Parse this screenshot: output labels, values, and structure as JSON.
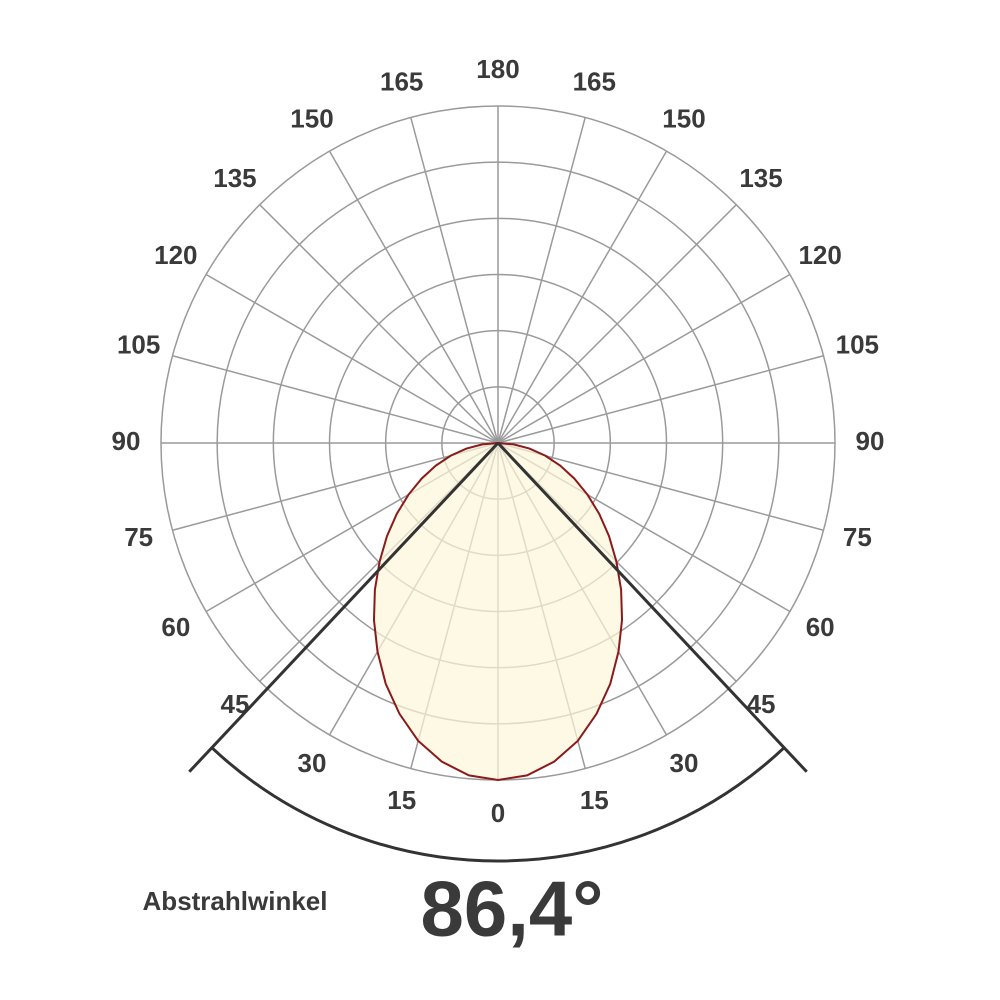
{
  "chart_data": {
    "type": "polar",
    "x": [
      -90,
      -85,
      -80,
      -75,
      -70,
      -65,
      -60,
      -55,
      -50,
      -45,
      -40,
      -35,
      -30,
      -25,
      -20,
      -15,
      -10,
      -5,
      0,
      5,
      10,
      15,
      20,
      25,
      30,
      35,
      40,
      45,
      50,
      55,
      60,
      65,
      70,
      75,
      80,
      85,
      90
    ],
    "values": [
      0,
      0.28,
      0.57,
      0.87,
      1.18,
      1.5,
      1.84,
      2.2,
      2.58,
      2.98,
      3.41,
      3.85,
      4.29,
      4.73,
      5.13,
      5.49,
      5.76,
      5.94,
      6.0,
      5.94,
      5.76,
      5.49,
      5.13,
      4.73,
      4.29,
      3.85,
      3.41,
      2.98,
      2.58,
      2.2,
      1.84,
      1.5,
      1.18,
      0.87,
      0.57,
      0.28,
      0
    ],
    "color": "#8b1a1a",
    "fill": "#fdf7d8",
    "rlim": [
      0,
      6
    ],
    "rticks": [
      1,
      2,
      3,
      4,
      5,
      6
    ],
    "xticks": [
      {
        "value": -165,
        "label": "165"
      },
      {
        "value": -150,
        "label": "150"
      },
      {
        "value": -135,
        "label": "135"
      },
      {
        "value": -120,
        "label": "120"
      },
      {
        "value": -105,
        "label": "105"
      },
      {
        "value": -90,
        "label": "90"
      },
      {
        "value": -75,
        "label": "75"
      },
      {
        "value": -60,
        "label": "60"
      },
      {
        "value": -45,
        "label": "45"
      },
      {
        "value": -30,
        "label": "30"
      },
      {
        "value": -15,
        "label": "15"
      },
      0,
      15,
      30,
      45,
      60,
      75,
      90,
      105,
      120,
      135,
      150,
      165,
      180
    ],
    "grid": true,
    "beam": {
      "label": "Abstrahlwinkel",
      "value": 86.4,
      "value_label": "86,4°"
    }
  }
}
